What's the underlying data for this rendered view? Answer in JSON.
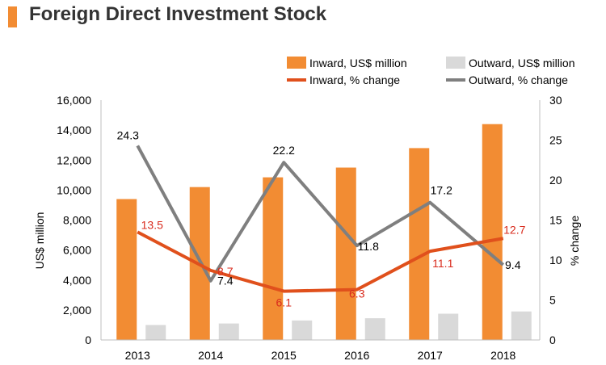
{
  "title": "Foreign Direct Investment Stock",
  "colors": {
    "title_bar": "#f28c33",
    "inward_bar": "#f28c33",
    "outward_bar": "#d9d9d9",
    "inward_line": "#e0501c",
    "outward_line": "#7f7f7f",
    "inward_label": "#d92b1d",
    "outward_label": "#000000"
  },
  "chart_data": {
    "type": "bar",
    "categories": [
      "2013",
      "2014",
      "2015",
      "2016",
      "2017",
      "2018"
    ],
    "series": [
      {
        "name": "Inward, US$ million",
        "type": "bar",
        "axis": "left",
        "values": [
          9400,
          10200,
          10850,
          11500,
          12800,
          14400
        ]
      },
      {
        "name": "Outward, US$ million",
        "type": "bar",
        "axis": "left",
        "values": [
          1000,
          1100,
          1300,
          1450,
          1750,
          1900
        ]
      },
      {
        "name": "Inward, % change",
        "type": "line",
        "axis": "right",
        "values": [
          13.5,
          8.7,
          6.1,
          6.3,
          11.1,
          12.7
        ]
      },
      {
        "name": "Outward, % change",
        "type": "line",
        "axis": "right",
        "values": [
          24.3,
          7.4,
          22.2,
          11.8,
          17.2,
          9.4
        ]
      }
    ],
    "ylabel": "US$ million",
    "y2label": "% change",
    "ylim": [
      0,
      16000
    ],
    "y2lim": [
      0,
      30
    ],
    "yticks": [
      "0",
      "2,000",
      "4,000",
      "6,000",
      "8,000",
      "10,000",
      "12,000",
      "14,000",
      "16,000"
    ],
    "y2ticks": [
      "0",
      "5",
      "10",
      "15",
      "20",
      "25",
      "30"
    ],
    "inward_pct_labels": [
      "13.5",
      "8.7",
      "6.1",
      "6.3",
      "11.1",
      "12.7"
    ],
    "outward_pct_labels": [
      "24.3",
      "7.4",
      "22.2",
      "11.8",
      "17.2",
      "9.4"
    ],
    "legend_position": "top-right",
    "grid": false
  }
}
